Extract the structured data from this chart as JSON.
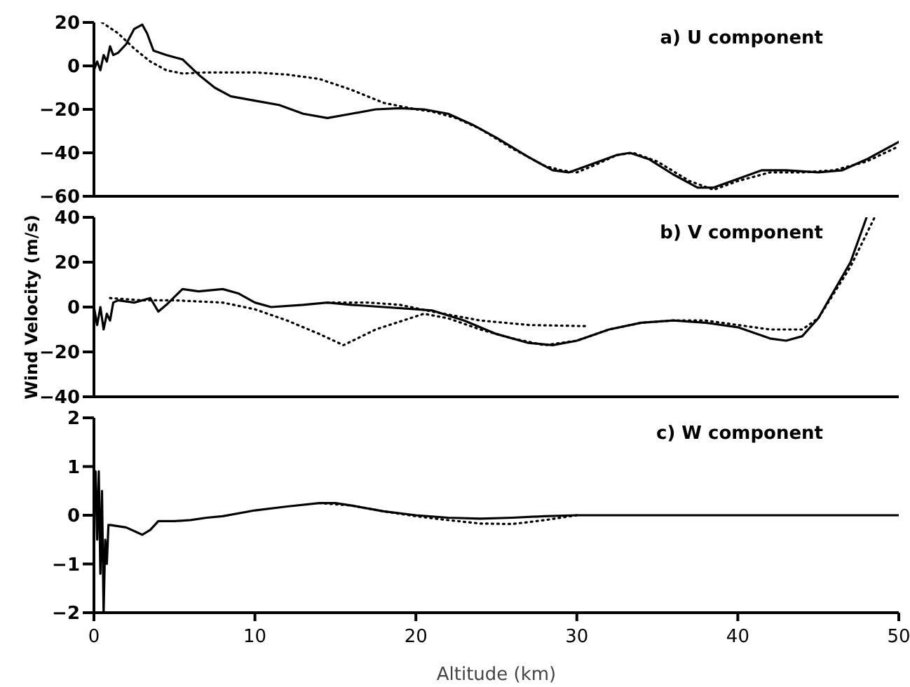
{
  "chart_data": [
    {
      "type": "line",
      "title": "a) U component",
      "xlim": [
        0,
        50
      ],
      "xticks": [
        0,
        10,
        20,
        30,
        40,
        50
      ],
      "ylim": [
        -60,
        20
      ],
      "yticks": [
        -60,
        -40,
        -20,
        0,
        20
      ],
      "tick_labels": "y",
      "marker": "none",
      "series": [
        {
          "color": "#000000",
          "line_style": "solid",
          "x": [
            0,
            0.2,
            0.4,
            0.6,
            0.8,
            1.0,
            1.2,
            1.5,
            2,
            2.5,
            3,
            3.3,
            3.7,
            4.5,
            5.5,
            6.5,
            7.5,
            8.5,
            10,
            11.5,
            13,
            14.5,
            16,
            17.5,
            19,
            20.5,
            22,
            23.5,
            25,
            27,
            28.5,
            29.5,
            31,
            32.5,
            33.3,
            34.5,
            36,
            37.5,
            38.5,
            40,
            41.5,
            43,
            45,
            46.5,
            48,
            50
          ],
          "values": [
            -2,
            2,
            -2,
            5,
            2,
            9,
            5,
            6,
            10,
            17,
            19,
            15,
            7,
            5,
            3,
            -4,
            -10,
            -14,
            -16,
            -18,
            -22,
            -24,
            -22,
            -20,
            -19.5,
            -20,
            -22,
            -27,
            -33,
            -42,
            -48,
            -49,
            -45,
            -41,
            -40,
            -43,
            -50,
            -56,
            -56,
            -52,
            -48,
            -48,
            -49,
            -48,
            -43,
            -35
          ]
        },
        {
          "color": "#000000",
          "line_style": "dotted",
          "x": [
            0.5,
            1.5,
            2.5,
            3.5,
            4.5,
            5.5,
            7,
            10,
            12,
            14,
            16,
            18,
            20,
            21,
            22.5,
            24,
            26,
            28,
            29,
            30,
            31,
            32.5,
            33.5,
            35,
            37,
            38.5,
            40,
            42,
            44,
            46,
            48,
            50
          ],
          "values": [
            20,
            15,
            8,
            2,
            -2,
            -3.5,
            -3,
            -3,
            -4,
            -6,
            -11,
            -17,
            -20,
            -21,
            -24,
            -29,
            -38,
            -46,
            -48,
            -49,
            -46,
            -41,
            -40,
            -44,
            -53,
            -57,
            -53,
            -49,
            -49,
            -48,
            -44,
            -37
          ]
        }
      ]
    },
    {
      "type": "line",
      "title": "b) V component",
      "ylabel": "Wind Velocity (m/s)",
      "xlim": [
        0,
        50
      ],
      "xticks": [
        0,
        10,
        20,
        30,
        40,
        50
      ],
      "ylim": [
        -40,
        40
      ],
      "yticks": [
        -40,
        -20,
        0,
        20,
        40
      ],
      "tick_labels": "y",
      "marker": "none",
      "series": [
        {
          "color": "#000000",
          "line_style": "solid",
          "x": [
            0,
            0.2,
            0.4,
            0.6,
            0.8,
            1,
            1.2,
            1.5,
            2.5,
            3.5,
            4,
            4.5,
            5.5,
            6.5,
            8,
            9,
            10,
            11,
            13,
            14.5,
            16,
            18,
            20,
            21,
            23,
            25,
            27,
            28.5,
            30,
            32,
            34,
            36,
            38,
            40,
            42,
            43,
            44,
            45,
            47,
            48
          ],
          "values": [
            0,
            -8,
            0,
            -10,
            -3,
            -6,
            2,
            3,
            2,
            4,
            -2,
            1,
            8,
            7,
            8,
            6,
            2,
            0,
            1,
            2,
            1,
            0,
            -1,
            -1.5,
            -6,
            -12,
            -16,
            -17,
            -15,
            -10,
            -7,
            -6,
            -7,
            -9,
            -14,
            -15,
            -13,
            -5,
            20,
            40
          ]
        },
        {
          "color": "#000000",
          "line_style": "dotted",
          "x": [
            1,
            3,
            5,
            8,
            10,
            12,
            14,
            15.5,
            17.5,
            20.5,
            22,
            24,
            26,
            28,
            30,
            32,
            34,
            36,
            38,
            40,
            42,
            44,
            45,
            47,
            48.5
          ],
          "values": [
            4,
            3,
            3,
            2,
            -1,
            -6,
            -12,
            -17,
            -10,
            -3,
            -5,
            -10,
            -14,
            -17,
            -15,
            -10,
            -7,
            -6,
            -6,
            -8,
            -10,
            -10,
            -5,
            18,
            40
          ]
        },
        {
          "color": "#000000",
          "line_style": "dotted",
          "x": [
            14.5,
            17,
            19,
            21,
            24,
            27,
            30.5
          ],
          "values": [
            2,
            2,
            1,
            -2,
            -6,
            -8,
            -8.5
          ]
        }
      ]
    },
    {
      "type": "line",
      "title": "c) W component",
      "xlabel": "Altitude (km)",
      "xlim": [
        0,
        50
      ],
      "xticks": [
        0,
        10,
        20,
        30,
        40,
        50
      ],
      "ylim": [
        -2,
        2
      ],
      "yticks": [
        -2,
        -1,
        0,
        1,
        2
      ],
      "marker": "none",
      "series": [
        {
          "color": "#000000",
          "line_style": "solid",
          "x": [
            0,
            0.1,
            0.2,
            0.3,
            0.4,
            0.5,
            0.6,
            0.7,
            0.8,
            0.9,
            1,
            2,
            3,
            3.5,
            4,
            5,
            6,
            7,
            8,
            10,
            12,
            14,
            15,
            16,
            18,
            20,
            22,
            24,
            26,
            28,
            30,
            50
          ],
          "values": [
            0,
            0.9,
            -0.5,
            0.9,
            -1.2,
            0.5,
            -2,
            -0.5,
            -1,
            -0.2,
            -0.2,
            -0.25,
            -0.4,
            -0.3,
            -0.12,
            -0.12,
            -0.1,
            -0.05,
            -0.02,
            0.1,
            0.18,
            0.25,
            0.25,
            0.2,
            0.08,
            0,
            -0.05,
            -0.07,
            -0.05,
            -0.02,
            0,
            0
          ]
        },
        {
          "color": "#000000",
          "line_style": "dotted",
          "x": [
            14,
            16,
            18,
            20,
            22,
            24,
            26,
            28,
            30
          ],
          "values": [
            0.25,
            0.2,
            0.08,
            -0.02,
            -0.1,
            -0.17,
            -0.18,
            -0.1,
            0
          ]
        }
      ]
    }
  ]
}
